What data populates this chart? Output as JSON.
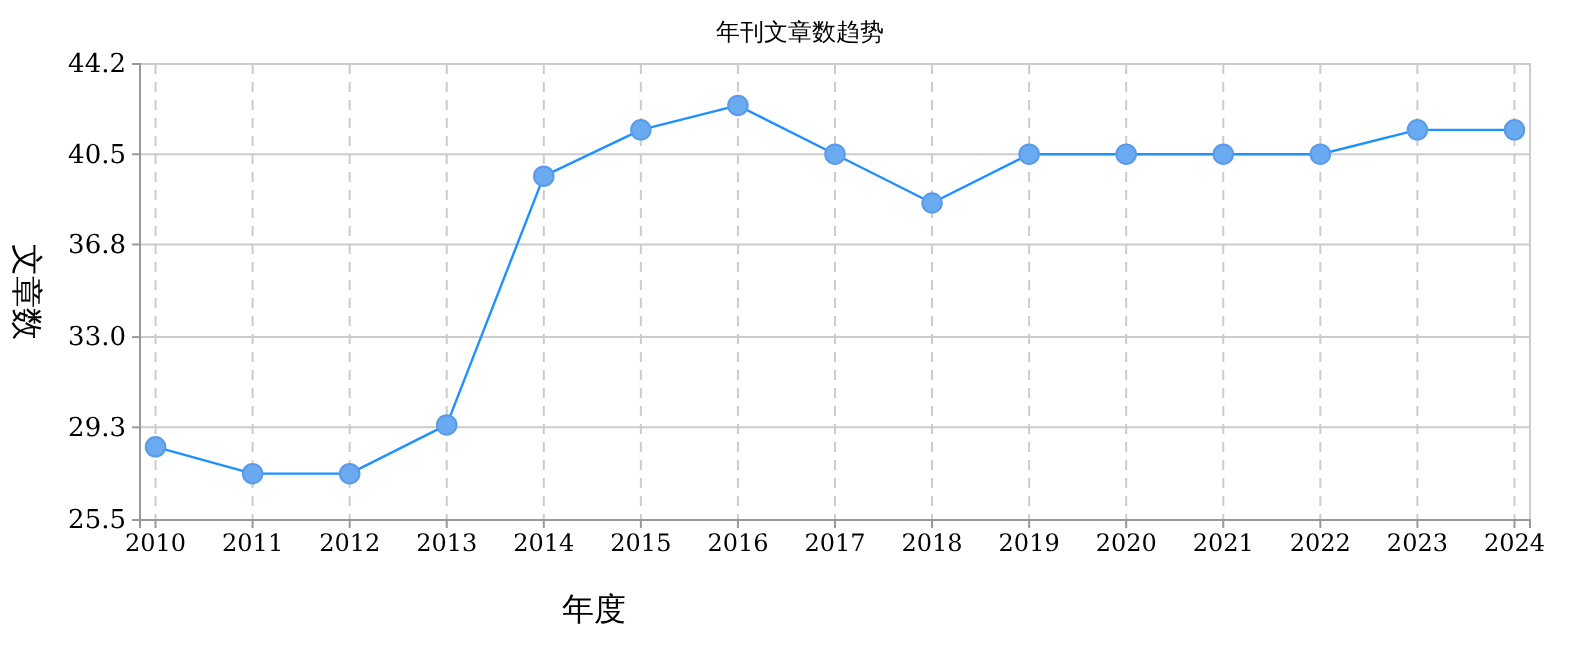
{
  "chart_data": {
    "type": "line",
    "title": "年刊文章数趋势",
    "xlabel": "年度",
    "ylabel": "文章数",
    "categories": [
      "2010",
      "2011",
      "2012",
      "2013",
      "2014",
      "2015",
      "2016",
      "2017",
      "2018",
      "2019",
      "2020",
      "2021",
      "2022",
      "2023",
      "2024"
    ],
    "series": [
      {
        "color": "#1e90ff",
        "values": [
          28.5,
          27.4,
          27.4,
          29.4,
          39.6,
          41.5,
          42.5,
          40.5,
          38.5,
          40.5,
          40.5,
          40.5,
          40.5,
          41.5,
          41.5
        ]
      }
    ],
    "ylim": [
      25.5,
      44.2
    ],
    "yticks": [
      25.5,
      29.3,
      {
        "value": 33,
        "label": "33.0"
      },
      36.8,
      40.5,
      44.2
    ],
    "grid": true,
    "marker": "circle",
    "line_style": "solid"
  }
}
